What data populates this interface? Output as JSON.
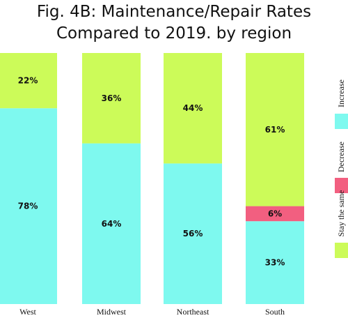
{
  "chart_data": {
    "type": "bar",
    "stacked": true,
    "normalized": true,
    "title_lines": [
      "Fig. 4B: Maintenance/Repair Rates",
      "Compared to 2019. by region"
    ],
    "categories": [
      "West",
      "Midwest",
      "Northeast",
      "South"
    ],
    "series": [
      {
        "name": "Increase",
        "color": "#7ef9ef",
        "values": [
          78,
          64,
          56,
          33
        ],
        "labels": [
          "78%",
          "64%",
          "56%",
          "33%"
        ]
      },
      {
        "name": "Decrease",
        "color": "#f25f80",
        "values": [
          0,
          0,
          0,
          6
        ],
        "labels": [
          "",
          "",
          "",
          "6%"
        ]
      },
      {
        "name": "Stay the same",
        "color": "#ccfb59",
        "values": [
          22,
          36,
          44,
          61
        ],
        "labels": [
          "22%",
          "36%",
          "44%",
          "61%"
        ]
      }
    ],
    "legend_position": "right",
    "legend_order": [
      "Increase",
      "Decrease",
      "Stay the same"
    ],
    "grid": false
  }
}
